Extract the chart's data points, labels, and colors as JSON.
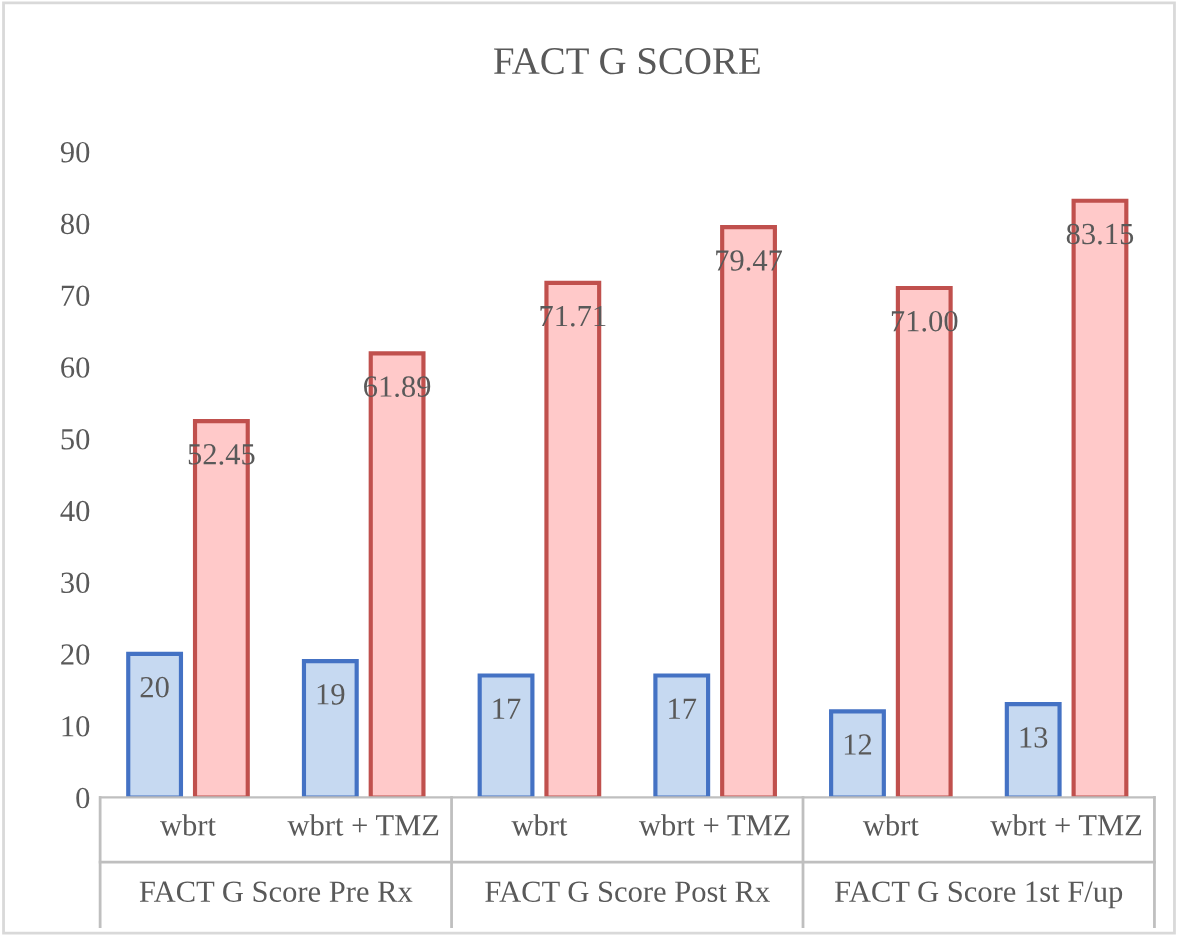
{
  "chart_data": {
    "type": "bar",
    "title": "FACT G SCORE",
    "categories": [
      "wbrt",
      "wbrt + TMZ",
      "wbrt",
      "wbrt + TMZ",
      "wbrt",
      "wbrt + TMZ"
    ],
    "series": [
      {
        "color": "#c6d9f1",
        "values": [
          20,
          19,
          17,
          17,
          12,
          13
        ],
        "value_labels": [
          "20",
          "19",
          "17",
          "17",
          "12",
          "13"
        ]
      },
      {
        "color": "#ffc9c9",
        "values": [
          52.45,
          61.89,
          71.71,
          79.47,
          71.0,
          83.15
        ],
        "value_labels": [
          "52.45",
          "61.89",
          "71.71",
          "79.47",
          "71.00",
          "83.15"
        ]
      }
    ],
    "annotations": [
      "FACT G Score Pre Rx",
      "FACT G Score Post Rx",
      "FACT G Score 1st F/up"
    ],
    "ylim": [
      0,
      90
    ],
    "yticks": [
      0,
      10,
      20,
      30,
      40,
      50,
      60,
      70,
      80,
      90
    ],
    "grid": false,
    "legend": false
  }
}
